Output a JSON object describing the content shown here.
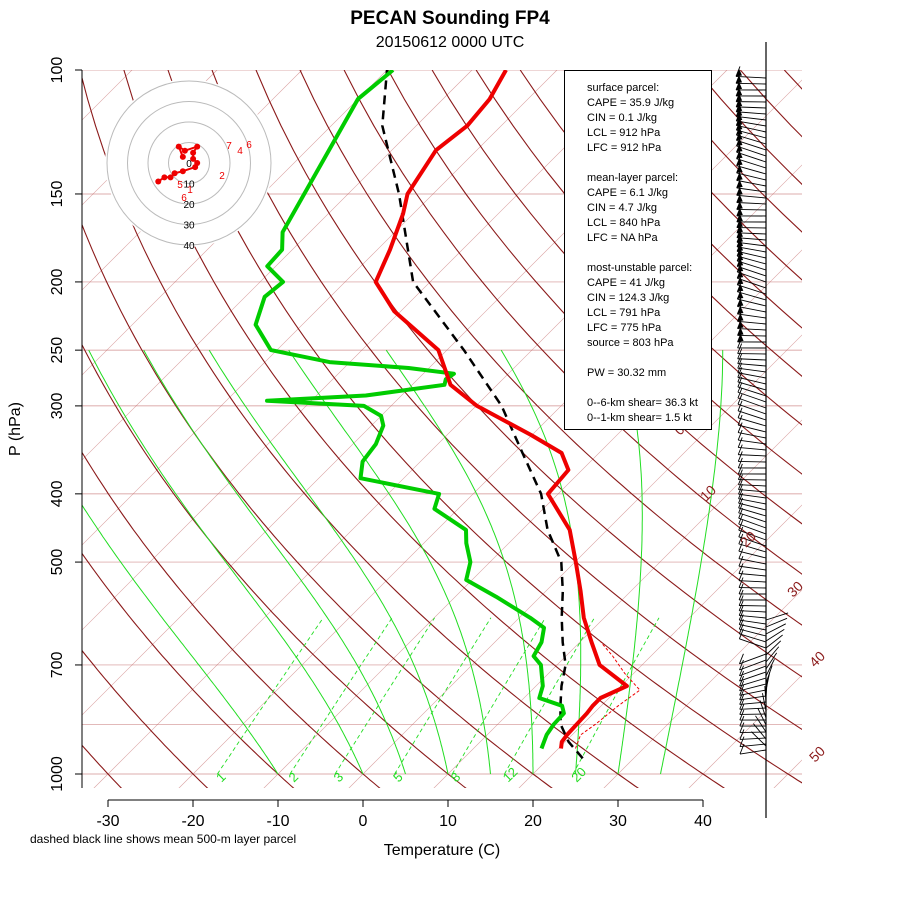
{
  "title": "PECAN Sounding FP4",
  "subtitle": "20150612 0000 UTC",
  "footnote": "dashed black line shows mean 500-m layer parcel",
  "colors": {
    "temperature": "#ee0000",
    "dewpoint": "#00cc00",
    "parcel": "#000000",
    "isotherm": "#c06060",
    "dry_adiabat": "#8b1a1a",
    "moist_adiabat": "#22dd22",
    "mixing_ratio": "#22dd22"
  },
  "info": {
    "sections": [
      {
        "lines": [
          "surface parcel:",
          "CAPE = 35.9 J/kg",
          "CIN = 0.1 J/kg",
          "LCL = 912 hPa",
          "LFC = 912 hPa"
        ]
      },
      {
        "lines": [
          "mean-layer parcel:",
          "CAPE = 6.1 J/kg",
          "CIN = 4.7 J/kg",
          "LCL = 840 hPa",
          "LFC = NA hPa"
        ]
      },
      {
        "lines": [
          "most-unstable parcel:",
          "CAPE = 41 J/kg",
          "CIN = 124.3 J/kg",
          "LCL = 791 hPa",
          "LFC = 775 hPa",
          "source = 803 hPa"
        ]
      },
      {
        "lines": [
          "PW =  30.32 mm"
        ]
      },
      {
        "lines": [
          "0--6-km shear= 36.3 kt",
          "0--1-km shear= 1.5 kt"
        ]
      }
    ]
  },
  "chart_data": {
    "type": "skew-t",
    "xlabel": "Temperature (C)",
    "ylabel": "P (hPa)",
    "xlim": [
      -35,
      45
    ],
    "ylim": [
      1050,
      100
    ],
    "x_ticks": [
      "-30",
      "-20",
      "-10",
      "0",
      "10",
      "20",
      "30",
      "40"
    ],
    "x_tick_values": [
      -30,
      -20,
      -10,
      0,
      10,
      20,
      30,
      40
    ],
    "y_ticks": [
      "100",
      "150",
      "200",
      "250",
      "300",
      "400",
      "500",
      "700",
      "1000"
    ],
    "y_tick_values": [
      100,
      150,
      200,
      250,
      300,
      400,
      500,
      700,
      1000
    ],
    "isotherm_labels": [
      "0",
      "10",
      "20",
      "30",
      "40",
      "50"
    ],
    "isotherm_label_values": [
      0,
      10,
      20,
      30,
      40,
      50
    ],
    "mixing_ratio_labels": [
      "1",
      "2",
      "3",
      "5",
      "8",
      "12",
      "20"
    ],
    "mixing_ratio_values": [
      1,
      2,
      3,
      5,
      8,
      12,
      20
    ],
    "temperature": {
      "name": "",
      "p": [
        920,
        900,
        880,
        850,
        820,
        800,
        780,
        750,
        700,
        650,
        600,
        550,
        500,
        450,
        400,
        370,
        350,
        330,
        300,
        280,
        250,
        220,
        200,
        180,
        160,
        150,
        130,
        120,
        110,
        100
      ],
      "t": [
        20.3,
        19.6,
        19.4,
        19.3,
        19.2,
        19.0,
        19.0,
        20.7,
        15.0,
        11.4,
        7.6,
        4.1,
        0.1,
        -4.4,
        -11.2,
        -11.6,
        -14.4,
        -20.1,
        -29.9,
        -35.5,
        -41.0,
        -50.8,
        -56.4,
        -58.5,
        -61.2,
        -63.0,
        -64.8,
        -64.0,
        -64.5,
        -66.0
      ]
    },
    "dewpoint": {
      "name": "",
      "p": [
        920,
        900,
        880,
        850,
        820,
        800,
        780,
        750,
        700,
        680,
        650,
        620,
        600,
        560,
        530,
        500,
        470,
        450,
        420,
        400,
        380,
        360,
        340,
        320,
        310,
        300,
        295,
        290,
        280,
        275,
        270,
        265,
        260,
        250,
        230,
        210,
        200,
        190,
        180,
        170,
        110,
        100
      ],
      "t": [
        18.0,
        17.5,
        17.0,
        16.6,
        16.5,
        15.4,
        11.8,
        10.8,
        8.1,
        6.2,
        5.5,
        4.1,
        1.3,
        -5.2,
        -10.7,
        -12.3,
        -15.0,
        -16.6,
        -22.8,
        -24.0,
        -35.1,
        -36.8,
        -37.3,
        -38.6,
        -40.0,
        -43.2,
        -55.2,
        -44.2,
        -36.2,
        -36.7,
        -36.4,
        -42.4,
        -52.4,
        -60.7,
        -65.5,
        -67.7,
        -67.3,
        -71.0,
        -71.2,
        -73.2,
        -80.0,
        -79.3
      ]
    },
    "parcel": {
      "name": "",
      "p": [
        950,
        900,
        850,
        800,
        750,
        700,
        650,
        600,
        550,
        500,
        450,
        400,
        350,
        300,
        250,
        200,
        150,
        120,
        100
      ],
      "t": [
        24.0,
        20.4,
        17.4,
        15.2,
        13.0,
        11.0,
        8.0,
        5.0,
        2.0,
        -1.6,
        -7.0,
        -12.0,
        -19.0,
        -27.0,
        -38.0,
        -52.0,
        -64.0,
        -74.0,
        -80.0
      ]
    },
    "hodograph": {
      "rings": [
        10,
        20,
        30,
        40
      ],
      "ring_labels": [
        "0",
        "10",
        "20",
        "30",
        "40"
      ],
      "point_labels": [
        "7",
        "6",
        "4",
        "2",
        "6",
        "1",
        "5"
      ],
      "u": [
        -15,
        -12,
        -9,
        -7,
        -3,
        3,
        4,
        2,
        2,
        4,
        -2,
        -5,
        -3
      ],
      "v": [
        -9,
        -7,
        -7,
        -5,
        -4,
        -2,
        0,
        2,
        5,
        8,
        6,
        8,
        3
      ]
    }
  }
}
